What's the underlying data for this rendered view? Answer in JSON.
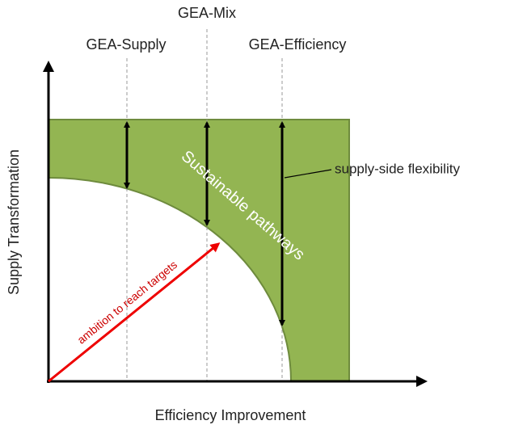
{
  "labels": {
    "top_center": "GEA-Mix",
    "left": "GEA-Supply",
    "right": "GEA-Efficiency"
  },
  "annotations": {
    "flexibility": "supply-side flexibility",
    "region": "Sustainable pathways",
    "ambition": "ambition to reach targets"
  },
  "axes": {
    "y": "Supply Transformation",
    "x": "Efficiency Improvement"
  }
}
